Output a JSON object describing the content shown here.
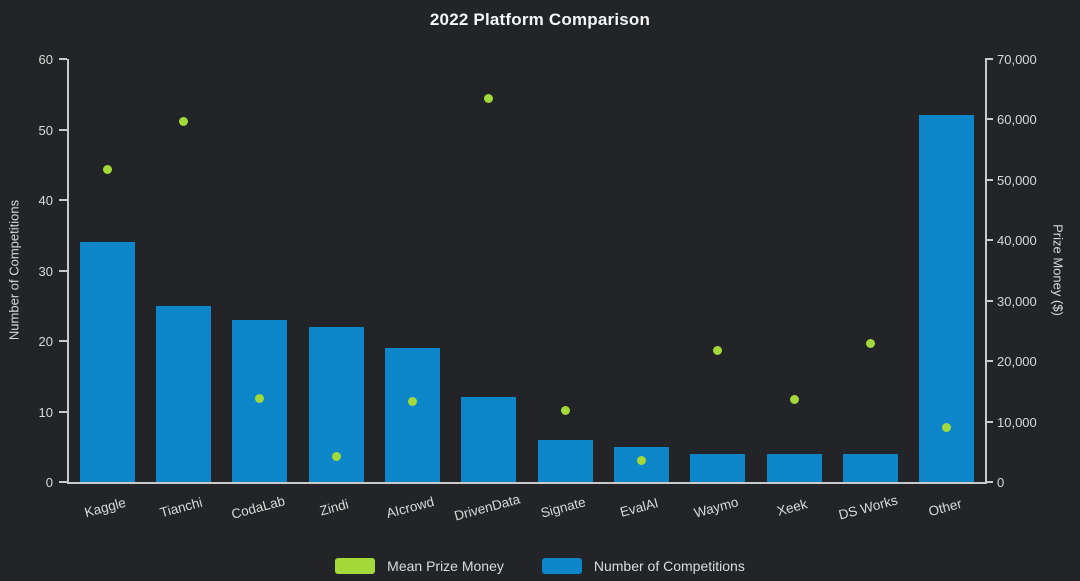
{
  "chart_data": {
    "type": "bar",
    "title": "2022 Platform Comparison",
    "categories": [
      "Kaggle",
      "Tianchi",
      "CodaLab",
      "Zindi",
      "AIcrowd",
      "DrivenData",
      "Signate",
      "EvalAI",
      "Waymo",
      "Xeek",
      "DS Works",
      "Other"
    ],
    "series": [
      {
        "name": "Number of Competitions",
        "type": "bar",
        "axis": "left",
        "color": "#0d87c9",
        "values": [
          34,
          25,
          23,
          22,
          19,
          12,
          6,
          5,
          4,
          4,
          4,
          52
        ]
      },
      {
        "name": "Mean Prize Money",
        "type": "scatter",
        "axis": "right",
        "color": "#a3da3a",
        "values": [
          51700,
          59700,
          13900,
          4300,
          13300,
          63400,
          11900,
          3500,
          21700,
          13600,
          22900,
          9100
        ]
      }
    ],
    "left_axis": {
      "label": "Number of Competitions",
      "min": 0,
      "max": 60,
      "step": 10,
      "ticks": [
        "0",
        "10",
        "20",
        "30",
        "40",
        "50",
        "60"
      ]
    },
    "right_axis": {
      "label": "Prize Money ($)",
      "min": 0,
      "max": 70000,
      "step": 10000,
      "ticks": [
        "0",
        "10,000",
        "20,000",
        "30,000",
        "40,000",
        "50,000",
        "60,000",
        "70,000"
      ]
    },
    "legend": [
      {
        "label": "Mean Prize Money",
        "color": "#a3da3a"
      },
      {
        "label": "Number of Competitions",
        "color": "#0d87c9"
      }
    ],
    "grid": false,
    "legend_position": "bottom-center",
    "background_color": "#232427",
    "text_color": "#d9d9d9"
  }
}
